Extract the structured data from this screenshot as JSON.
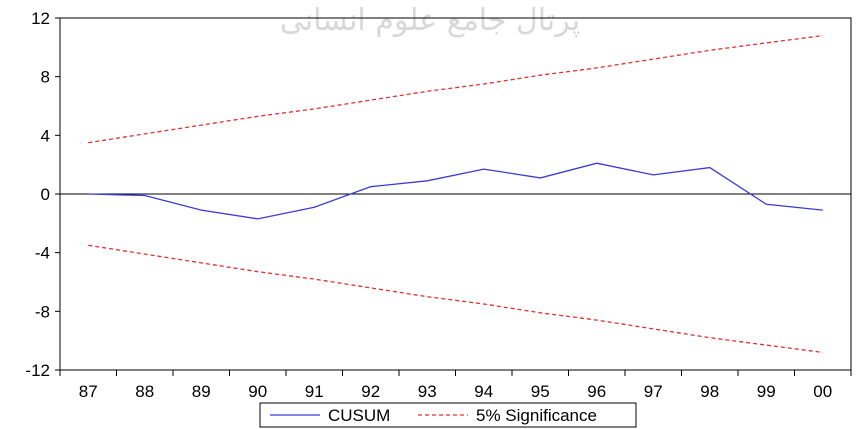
{
  "watermark": "پرتال جامع علوم انسانی",
  "chart_data": {
    "type": "line",
    "title": "",
    "xlabel": "",
    "ylabel": "",
    "x": [
      "87",
      "88",
      "89",
      "90",
      "91",
      "92",
      "93",
      "94",
      "95",
      "96",
      "97",
      "98",
      "99",
      "00"
    ],
    "ylim": [
      -12,
      12
    ],
    "yticks": [
      12,
      8,
      4,
      0,
      -4,
      -8,
      -12
    ],
    "yticklabels": [
      "12",
      "8",
      "4",
      "0",
      "-4",
      "-8",
      "-12"
    ],
    "grid": false,
    "legend_position": "bottom",
    "series": [
      {
        "name": "CUSUM",
        "color": "#3b3bd4",
        "style": "solid",
        "values": [
          0.0,
          -0.1,
          -1.1,
          -1.7,
          -0.9,
          0.5,
          0.9,
          1.7,
          1.1,
          2.1,
          1.3,
          1.8,
          -0.7,
          -1.1
        ]
      },
      {
        "name": "5% Significance",
        "color": "#e03030",
        "style": "dashed",
        "values": [
          3.5,
          4.1,
          4.7,
          5.3,
          5.8,
          6.4,
          7.0,
          7.5,
          8.1,
          8.6,
          9.2,
          9.8,
          10.3,
          10.8
        ]
      },
      {
        "name": "5% Significance",
        "color": "#e03030",
        "style": "dashed",
        "legend": false,
        "values": [
          -3.5,
          -4.1,
          -4.7,
          -5.3,
          -5.8,
          -6.4,
          -7.0,
          -7.5,
          -8.1,
          -8.6,
          -9.2,
          -9.8,
          -10.3,
          -10.8
        ]
      }
    ],
    "legend": [
      {
        "name": "CUSUM",
        "color": "#3b3bd4",
        "style": "solid"
      },
      {
        "name": "5% Significance",
        "color": "#e03030",
        "style": "dashed"
      }
    ]
  }
}
